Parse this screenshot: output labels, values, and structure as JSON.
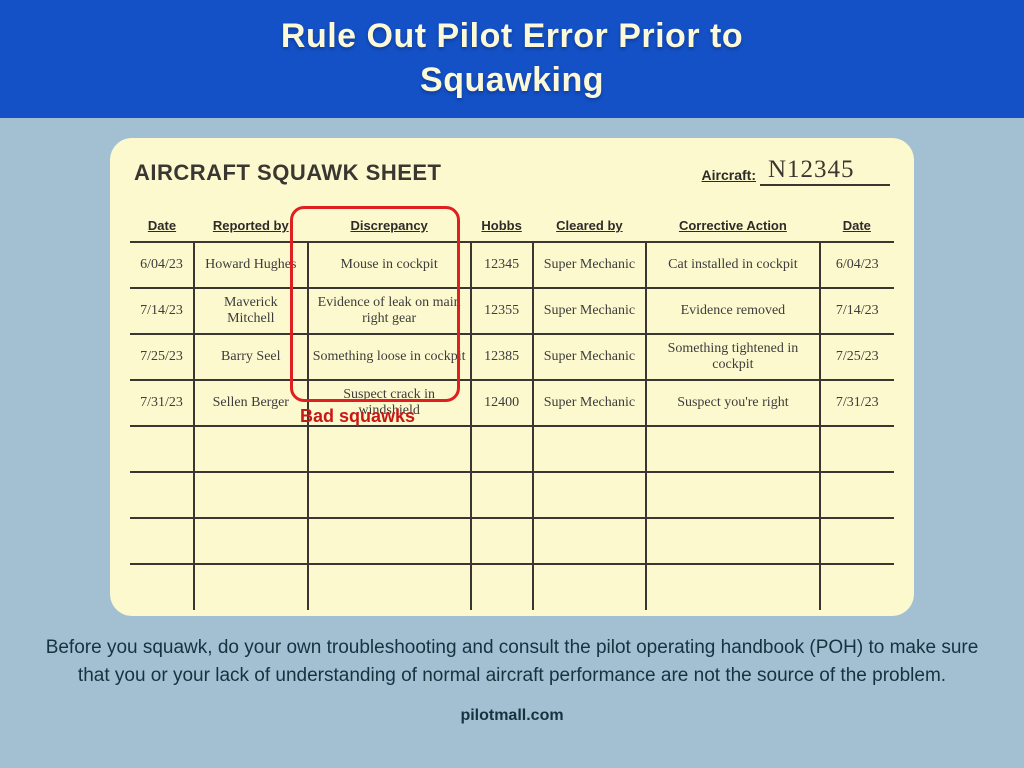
{
  "header": {
    "title_line1": "Rule Out Pilot Error Prior to",
    "title_line2": "Squawking"
  },
  "sheet": {
    "title": "AIRCRAFT SQUAWK SHEET",
    "aircraft_label": "Aircraft:",
    "aircraft_value": "N12345",
    "columns": {
      "date": "Date",
      "reported_by": "Reported by",
      "discrepancy": "Discrepancy",
      "hobbs": "Hobbs",
      "cleared_by": "Cleared by",
      "corrective_action": "Corrective Action",
      "date2": "Date"
    },
    "rows": [
      {
        "date": "6/04/23",
        "reported_by": "Howard Hughes",
        "discrepancy": "Mouse in cockpit",
        "hobbs": "12345",
        "cleared_by": "Super Mechanic",
        "corrective_action": "Cat installed in cockpit",
        "date2": "6/04/23"
      },
      {
        "date": "7/14/23",
        "reported_by": "Maverick Mitchell",
        "discrepancy": "Evidence of leak on main right gear",
        "hobbs": "12355",
        "cleared_by": "Super Mechanic",
        "corrective_action": "Evidence removed",
        "date2": "7/14/23"
      },
      {
        "date": "7/25/23",
        "reported_by": "Barry Seel",
        "discrepancy": "Something loose in cockpit",
        "hobbs": "12385",
        "cleared_by": "Super Mechanic",
        "corrective_action": "Something tightened in cockpit",
        "date2": "7/25/23"
      },
      {
        "date": "7/31/23",
        "reported_by": "Sellen Berger",
        "discrepancy": "Suspect crack in windshield",
        "hobbs": "12400",
        "cleared_by": "Super Mechanic",
        "corrective_action": "Suspect you're right",
        "date2": "7/31/23"
      }
    ],
    "empty_rows": 4,
    "callout_label": "Bad squawks"
  },
  "footer": {
    "text": "Before you squawk, do your own troubleshooting and consult the pilot operating handbook (POH) to make sure that you or your lack of understanding of normal aircraft performance are not the source of the problem.",
    "credit": "pilotmall.com"
  },
  "colors": {
    "page_bg": "#a2c0d1",
    "banner_bg": "#1450c6",
    "banner_text": "#fcf9d8",
    "sheet_bg": "#fdf9ce",
    "ink": "#3a3733",
    "callout": "#e02020",
    "callout_text": "#c81818",
    "body_text": "#17323f"
  }
}
